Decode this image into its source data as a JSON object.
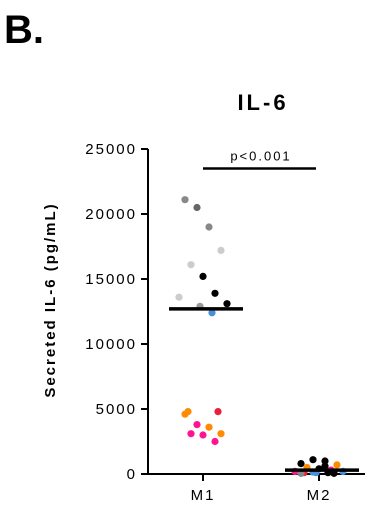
{
  "panel_label": "B.",
  "chart_data": {
    "type": "scatter",
    "title": "IL-6",
    "ylabel": "Secreted IL-6 (pg/mL)",
    "xlabel": "",
    "categories": [
      "M1",
      "M2"
    ],
    "ylim": [
      0,
      25000
    ],
    "yticks": [
      0,
      5000,
      10000,
      15000,
      20000,
      25000
    ],
    "ytick_labels": [
      "0",
      "5000",
      "10000",
      "15000",
      "20000",
      "25000"
    ],
    "grid": false,
    "annotation": {
      "text": "p<0.001",
      "between": [
        "M1",
        "M2"
      ],
      "y": 23500
    },
    "groups": [
      {
        "category": "M1",
        "mean": 12700,
        "points": [
          {
            "y": 21100,
            "color": "#888888"
          },
          {
            "y": 20500,
            "color": "#666666"
          },
          {
            "y": 19000,
            "color": "#888888"
          },
          {
            "y": 17200,
            "color": "#cccccc"
          },
          {
            "y": 16100,
            "color": "#cccccc"
          },
          {
            "y": 15200,
            "color": "#000000"
          },
          {
            "y": 13900,
            "color": "#000000"
          },
          {
            "y": 13600,
            "color": "#cccccc"
          },
          {
            "y": 13100,
            "color": "#000000"
          },
          {
            "y": 12900,
            "color": "#999999"
          },
          {
            "y": 12400,
            "color": "#4a90d9"
          },
          {
            "y": 4800,
            "color": "#ff8c00"
          },
          {
            "y": 4800,
            "color": "#e8203a"
          },
          {
            "y": 4600,
            "color": "#ff8c00"
          },
          {
            "y": 3800,
            "color": "#ff1493"
          },
          {
            "y": 3600,
            "color": "#ff8c00"
          },
          {
            "y": 3100,
            "color": "#ff8c00"
          },
          {
            "y": 3100,
            "color": "#ff1493"
          },
          {
            "y": 3000,
            "color": "#ff1493"
          },
          {
            "y": 2500,
            "color": "#ff1493"
          }
        ]
      },
      {
        "category": "M2",
        "mean": 300,
        "points": [
          {
            "y": 800,
            "color": "#000000"
          },
          {
            "y": 1100,
            "color": "#000000"
          },
          {
            "y": 1000,
            "color": "#000000"
          },
          {
            "y": 700,
            "color": "#ff8c00"
          },
          {
            "y": 500,
            "color": "#ff8c00"
          },
          {
            "y": 400,
            "color": "#000000"
          },
          {
            "y": 300,
            "color": "#ff1493"
          },
          {
            "y": 200,
            "color": "#ff1493"
          },
          {
            "y": 200,
            "color": "#4a90d9"
          },
          {
            "y": 100,
            "color": "#4a90d9"
          },
          {
            "y": 100,
            "color": "#000000"
          },
          {
            "y": 100,
            "color": "#e8203a"
          },
          {
            "y": 50,
            "color": "#000000"
          },
          {
            "y": 50,
            "color": "#888888"
          },
          {
            "y": 150,
            "color": "#4a90d9"
          },
          {
            "y": 600,
            "color": "#000000"
          }
        ]
      }
    ]
  }
}
